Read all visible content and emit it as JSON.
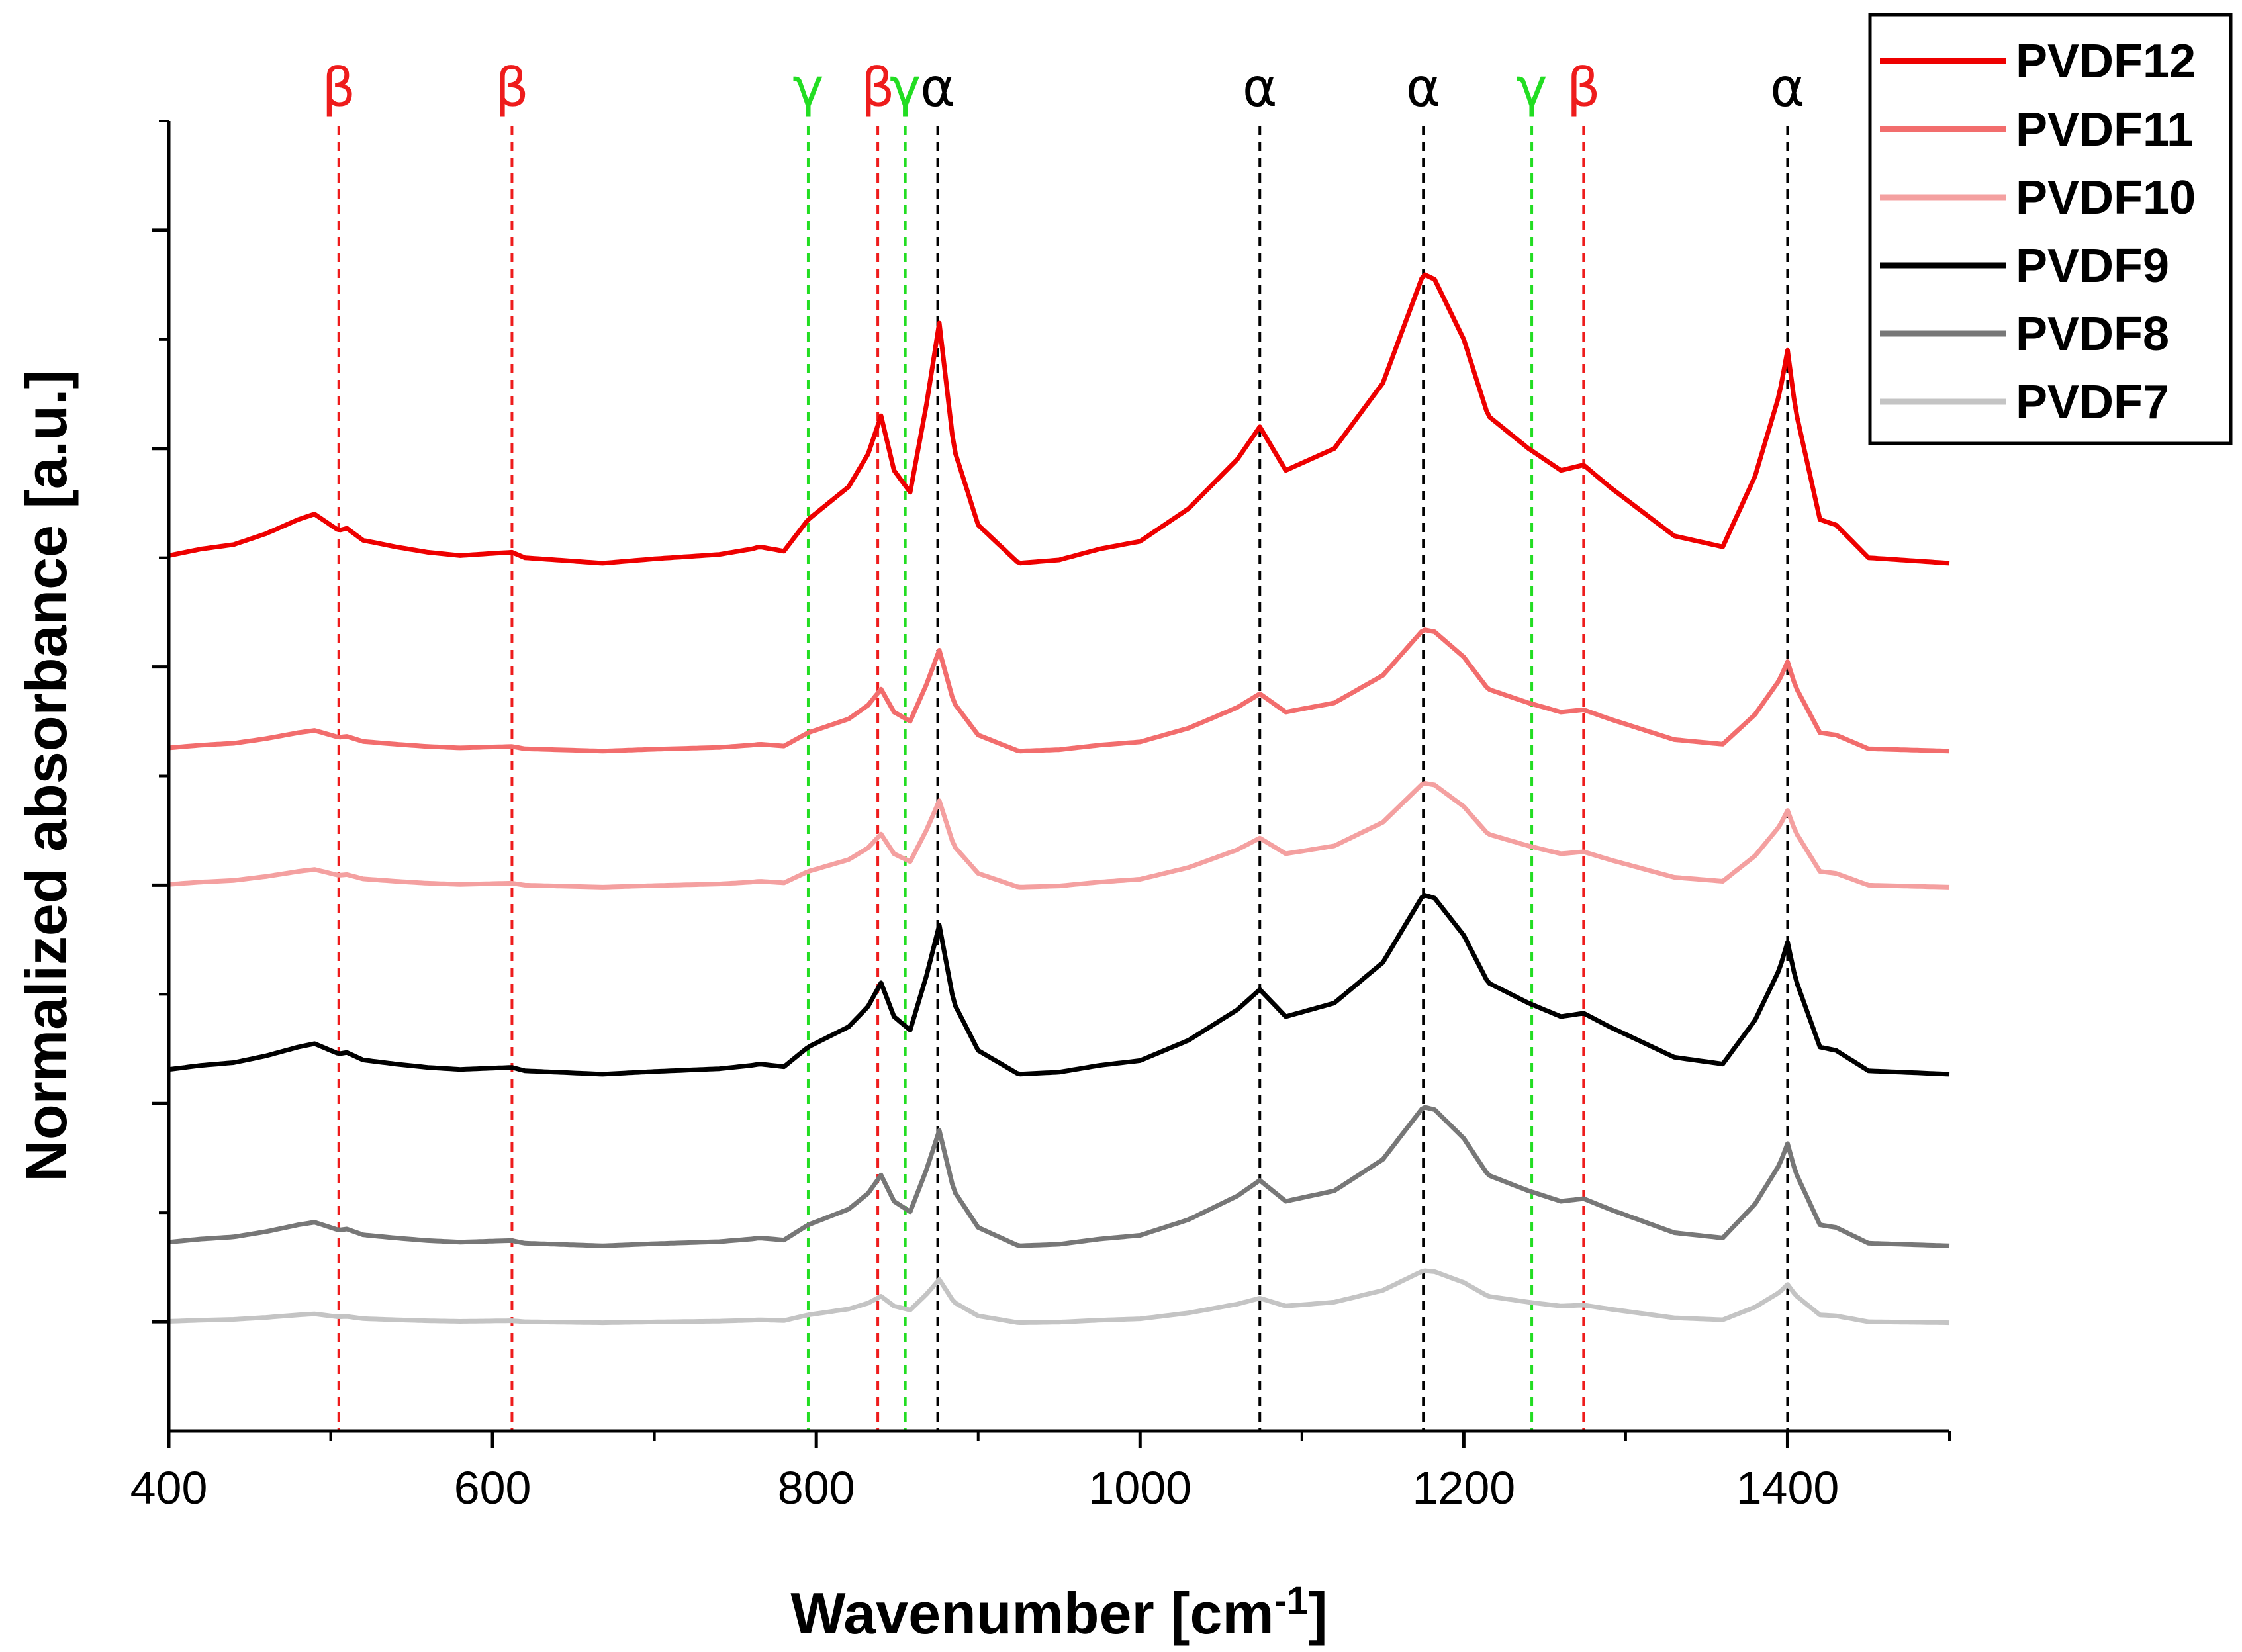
{
  "chart_data": {
    "type": "line",
    "title": "",
    "xlabel": "Wavenumber [cm",
    "xlabel_superscript": "-1",
    "xlabel_suffix": "]",
    "ylabel": "Normalized absorbance [a.u.]",
    "xlim": [
      400,
      1500
    ],
    "ylim": [
      0,
      12
    ],
    "xticks": [
      400,
      600,
      800,
      1000,
      1200,
      1400
    ],
    "xtick_labels": [
      "400",
      "600",
      "800",
      "1000",
      "1200",
      "1400"
    ],
    "yticks_major": [
      1,
      3,
      5,
      7,
      9,
      11
    ],
    "yticks_minor": [
      2,
      4,
      6,
      8,
      10,
      12
    ],
    "y_tick_labels_shown": false,
    "grid": false,
    "legend_position": "top-right",
    "phase_markers": [
      {
        "x": 505,
        "label": "β",
        "color": "#ee1c1c"
      },
      {
        "x": 612,
        "label": "β",
        "color": "#ee1c1c"
      },
      {
        "x": 795,
        "label": "γ",
        "color": "#22dd22"
      },
      {
        "x": 838,
        "label": "β",
        "color": "#ee1c1c"
      },
      {
        "x": 855,
        "label": "γ",
        "color": "#22dd22"
      },
      {
        "x": 875,
        "label": "α",
        "color": "#000000"
      },
      {
        "x": 1074,
        "label": "α",
        "color": "#000000"
      },
      {
        "x": 1175,
        "label": "α",
        "color": "#000000"
      },
      {
        "x": 1242,
        "label": "γ",
        "color": "#22dd22"
      },
      {
        "x": 1274,
        "label": "β",
        "color": "#ee1c1c"
      },
      {
        "x": 1400,
        "label": "α",
        "color": "#000000"
      }
    ],
    "series": [
      {
        "name": "PVDF12",
        "color": "#ee0000",
        "baseline": 8.0,
        "scale": 1.0,
        "x": [
          400,
          410,
          420,
          440,
          460,
          480,
          490,
          500,
          505,
          510,
          520,
          540,
          560,
          580,
          600,
          612,
          620,
          668,
          700,
          740,
          760,
          765,
          780,
          795,
          820,
          832,
          840,
          848,
          858,
          868,
          876,
          885,
          900,
          925,
          950,
          975,
          1000,
          1030,
          1060,
          1074,
          1090,
          1120,
          1150,
          1165,
          1175,
          1182,
          1200,
          1215,
          1240,
          1260,
          1274,
          1290,
          1330,
          1360,
          1380,
          1395,
          1400,
          1405,
          1420,
          1430,
          1450,
          1500
        ],
        "values": [
          8.02,
          8.05,
          8.08,
          8.12,
          8.22,
          8.35,
          8.4,
          8.3,
          8.25,
          8.27,
          8.16,
          8.1,
          8.05,
          8.02,
          8.04,
          8.05,
          8.0,
          7.95,
          7.99,
          8.03,
          8.08,
          8.1,
          8.06,
          8.35,
          8.65,
          8.95,
          9.3,
          8.8,
          8.6,
          9.4,
          10.15,
          9.0,
          8.3,
          7.95,
          7.98,
          8.08,
          8.15,
          8.45,
          8.9,
          9.2,
          8.8,
          9.0,
          9.6,
          10.2,
          10.6,
          10.55,
          10.0,
          9.3,
          9.0,
          8.8,
          8.85,
          8.65,
          8.2,
          8.1,
          8.75,
          9.5,
          9.9,
          9.35,
          8.35,
          8.3,
          8.0,
          7.95
        ]
      },
      {
        "name": "PVDF11",
        "color": "#f26d6d",
        "baseline": 6.25,
        "scale": 0.42
      },
      {
        "name": "PVDF10",
        "color": "#f4a0a0",
        "baseline": 5.0,
        "scale": 0.36
      },
      {
        "name": "PVDF9",
        "color": "#000000",
        "baseline": 3.3,
        "scale": 0.62
      },
      {
        "name": "PVDF8",
        "color": "#777777",
        "baseline": 1.72,
        "scale": 0.48
      },
      {
        "name": "PVDF7",
        "color": "#c4c4c4",
        "baseline": 1.0,
        "scale": 0.18
      }
    ]
  }
}
